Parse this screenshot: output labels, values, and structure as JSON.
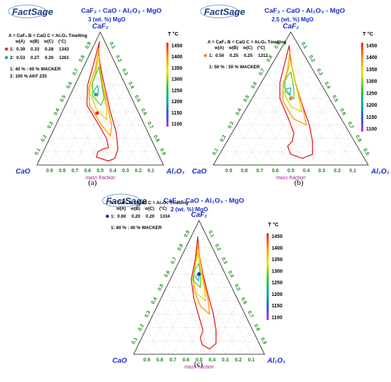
{
  "panels": [
    {
      "id": "a",
      "brand": "FactSage",
      "title": "CaF₂ - CaO - Al₂O₃ - MgO",
      "subtitle": "3 (wt. %) MgO",
      "apex_top": "CaF₂",
      "apex_left": "CaO",
      "apex_right": "Al₂O₃",
      "mass_fraction_label": "mass fraction",
      "caption": "(a)",
      "legend_title": "A = CaF₂  B = CaO  C = Al₂O₃  Tmelting",
      "legend_cols": [
        "w(A)",
        "w(B)",
        "w(C)",
        "(°C)"
      ],
      "points": [
        {
          "label": "1:",
          "wA": "0.39",
          "wB": "0.33",
          "wC": "0.28",
          "T": "1343",
          "color": "#e03020"
        },
        {
          "label": "2:",
          "wA": "0.53",
          "wB": "0.27",
          "wC": "0.20",
          "T": "1261",
          "color": "#2aa198"
        }
      ],
      "notes": [
        "1: 40 % : 60 % WACKER",
        "2: 100 % AKF 235"
      ],
      "colorbar_title": "T °C",
      "colorbar_ticks": [
        "1450",
        "1400",
        "1350",
        "1300",
        "1250",
        "1200",
        "1150",
        "1100"
      ]
    },
    {
      "id": "b",
      "brand": "FactSage",
      "title": "CaF₂ - CaO - Al₂O₃ - MgO",
      "subtitle": "2.5 (wt. %) MgO",
      "apex_top": "CaF₂",
      "apex_left": "CaO",
      "apex_right": "Al₂O₃",
      "mass_fraction_label": "mass fraction",
      "caption": "(b)",
      "legend_title": "A = CaF₂  B = CaO  C = Al₂O₃  Tmelting",
      "legend_cols": [
        "w(A)",
        "w(B)",
        "w(C)",
        "(°C)"
      ],
      "points": [
        {
          "label": "1:",
          "wA": "0.50",
          "wB": "0.25",
          "wC": "0.25",
          "T": "1312",
          "color": "#f08040"
        }
      ],
      "notes": [
        "1: 50 % : 50 % WACKER"
      ],
      "colorbar_title": "T °C",
      "colorbar_ticks": [
        "1450",
        "1400",
        "1350",
        "1300",
        "1250",
        "1200",
        "1150",
        "1100"
      ]
    },
    {
      "id": "c",
      "brand": "FactSage",
      "title": "CaF₂ - CaO - Al₂O₃ - MgO",
      "subtitle": "2 (wt. %) MgO",
      "apex_top": "CaF₂",
      "apex_left": "CaO",
      "apex_right": "Al₂O₃",
      "mass_fraction_label": "mass fraction",
      "caption": "(c)",
      "legend_title": "A = CaF₂  B = CaO  C = Al₂O₃  Tmelting",
      "legend_cols": [
        "w(A)",
        "w(B)",
        "w(C)",
        "(°C)"
      ],
      "points": [
        {
          "label": "1:",
          "wA": "0.60",
          "wB": "0.20",
          "wC": "0.20",
          "T": "1334",
          "color": "#1f2bd6"
        }
      ],
      "notes": [
        "1: 60 % : 40 % WACKER"
      ],
      "colorbar_title": "T °C",
      "colorbar_ticks": [
        "1450",
        "1400",
        "1350",
        "1300",
        "1250",
        "1200",
        "1150",
        "1100"
      ]
    }
  ],
  "chart_data": [
    {
      "type": "ternary-contour",
      "title": "CaF₂ - CaO - Al₂O₃ - MgO",
      "subtitle": "3 (wt. %) MgO",
      "apices": [
        "CaF₂",
        "CaO",
        "Al₂O₃"
      ],
      "axis_ticks": [
        "0.1",
        "0.2",
        "0.3",
        "0.4",
        "0.5",
        "0.6",
        "0.7",
        "0.8",
        "0.9"
      ],
      "isotherms_C": [
        1450,
        1400,
        1350,
        1300,
        1250
      ],
      "points": [
        {
          "wA": 0.39,
          "wB": 0.33,
          "wC": 0.28,
          "T": 1343
        },
        {
          "wA": 0.53,
          "wB": 0.27,
          "wC": 0.2,
          "T": 1261
        }
      ],
      "colorbar_range": [
        1100,
        1450
      ]
    },
    {
      "type": "ternary-contour",
      "title": "CaF₂ - CaO - Al₂O₃ - MgO",
      "subtitle": "2.5 (wt. %) MgO",
      "apices": [
        "CaF₂",
        "CaO",
        "Al₂O₃"
      ],
      "axis_ticks": [
        "0.1",
        "0.2",
        "0.3",
        "0.4",
        "0.5",
        "0.6",
        "0.7",
        "0.8",
        "0.9"
      ],
      "isotherms_C": [
        1450,
        1400,
        1350,
        1300,
        1250
      ],
      "points": [
        {
          "wA": 0.5,
          "wB": 0.25,
          "wC": 0.25,
          "T": 1312
        }
      ],
      "colorbar_range": [
        1100,
        1450
      ]
    },
    {
      "type": "ternary-contour",
      "title": "CaF₂ - CaO - Al₂O₃ - MgO",
      "subtitle": "2 (wt. %) MgO",
      "apices": [
        "CaF₂",
        "CaO",
        "Al₂O₃"
      ],
      "axis_ticks": [
        "0.1",
        "0.2",
        "0.3",
        "0.4",
        "0.5",
        "0.6",
        "0.7",
        "0.8",
        "0.9"
      ],
      "isotherms_C": [
        1450,
        1400,
        1350,
        1300,
        1250
      ],
      "points": [
        {
          "wA": 0.6,
          "wB": 0.2,
          "wC": 0.2,
          "T": 1334
        }
      ],
      "colorbar_range": [
        1100,
        1450
      ]
    }
  ]
}
